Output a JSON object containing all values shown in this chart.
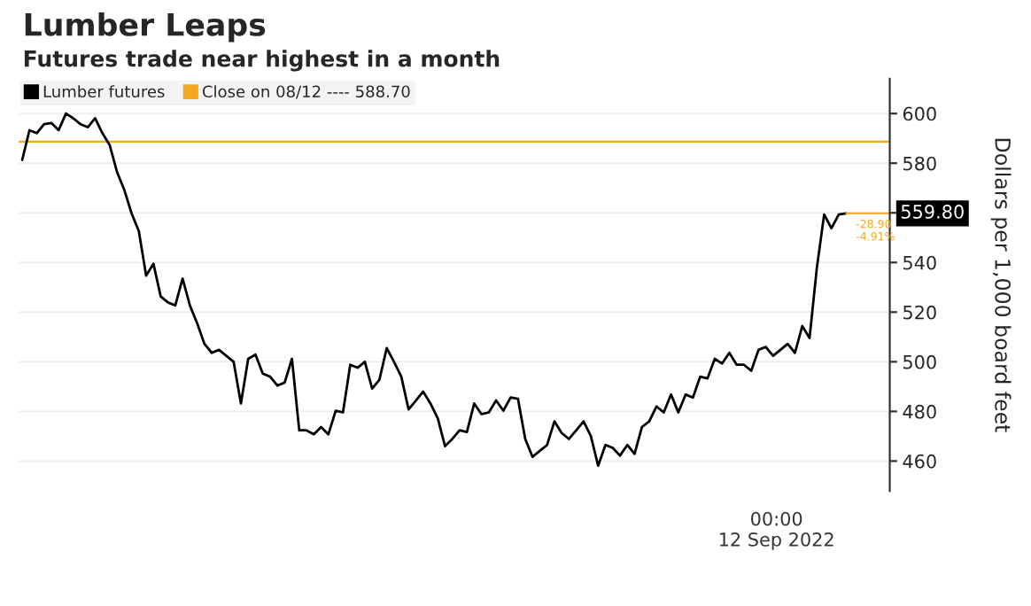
{
  "chart_data": {
    "type": "line",
    "title": "Lumber Leaps",
    "subtitle": "Futures trade near highest in a month",
    "ylabel": "Dollars per 1,000 board feet",
    "ylim": [
      448,
      614
    ],
    "yticks": [
      460,
      480,
      500,
      520,
      540,
      {
        "value": 560,
        "label": null
      },
      580,
      600
    ],
    "categories": [
      null,
      null,
      null,
      null,
      null,
      null,
      null,
      null,
      null,
      null,
      null,
      null,
      null,
      null,
      null,
      null,
      null,
      null,
      null,
      null,
      null,
      null,
      null,
      null,
      null,
      null,
      null,
      null,
      null,
      null,
      null,
      null,
      null,
      null,
      null,
      null,
      null,
      null,
      null,
      null,
      null,
      null,
      null,
      null,
      null,
      null,
      null,
      null,
      null,
      null,
      null,
      null,
      null,
      null,
      null,
      null,
      null,
      null,
      null,
      null,
      null,
      null,
      null,
      null,
      null,
      null,
      null,
      null,
      null,
      null,
      null,
      null,
      null,
      null,
      null,
      null,
      null,
      null,
      null,
      null,
      null,
      null,
      null,
      null,
      null,
      null,
      null,
      null,
      null,
      null,
      null,
      null,
      null,
      null,
      null,
      null,
      null,
      null,
      null,
      null,
      null,
      null,
      null,
      null,
      null,
      null,
      null,
      null,
      null,
      null,
      null,
      null,
      null,
      null
    ],
    "grid": "y",
    "legend": "top left",
    "line_style": "solid",
    "series": [
      {
        "name": "Lumber futures",
        "color": "#000000",
        "values": [
          581.3,
          593.3,
          592.1,
          595.7,
          596.2,
          593.3,
          600.0,
          598.1,
          595.7,
          594.5,
          598.1,
          592.1,
          587.3,
          576.5,
          569.3,
          559.8,
          552.6,
          534.7,
          539.5,
          526.3,
          523.9,
          522.7,
          533.5,
          522.7,
          515.5,
          507.2,
          503.6,
          504.8,
          502.4,
          500.0,
          483.2,
          501.2,
          502.9,
          495.2,
          494.0,
          490.4,
          491.6,
          501.2,
          472.4,
          472.4,
          470.8,
          473.7,
          470.8,
          480.3,
          479.6,
          498.8,
          497.6,
          500.0,
          489.2,
          492.8,
          505.5,
          500.0,
          494.0,
          480.8,
          484.4,
          488.0,
          483.2,
          477.2,
          466.0,
          468.9,
          472.4,
          471.7,
          483.2,
          478.9,
          479.6,
          484.4,
          480.3,
          485.6,
          485.1,
          468.9,
          461.7,
          464.1,
          466.5,
          476.0,
          471.3,
          468.9,
          472.4,
          476.0,
          470.1,
          458.1,
          466.5,
          465.3,
          462.2,
          466.5,
          462.9,
          473.7,
          476.0,
          482.0,
          479.6,
          486.8,
          479.6,
          486.8,
          485.6,
          494.0,
          493.3,
          501.2,
          499.3,
          503.6,
          498.8,
          498.8,
          496.4,
          504.8,
          506.0,
          502.4,
          504.8,
          507.2,
          503.6,
          514.4,
          509.6,
          537.8,
          559.3,
          553.8,
          559.3,
          559.8
        ]
      }
    ],
    "ref_lines": [
      {
        "axis": "y",
        "value": 588.7,
        "label": "Close on 08/12 ---- 588.70",
        "color": "#f5a623",
        "line_style": "solid"
      }
    ],
    "annotations": [
      "559.80",
      "-28.90\n-4.91%",
      "00:00\n12 Sep 2022"
    ]
  }
}
